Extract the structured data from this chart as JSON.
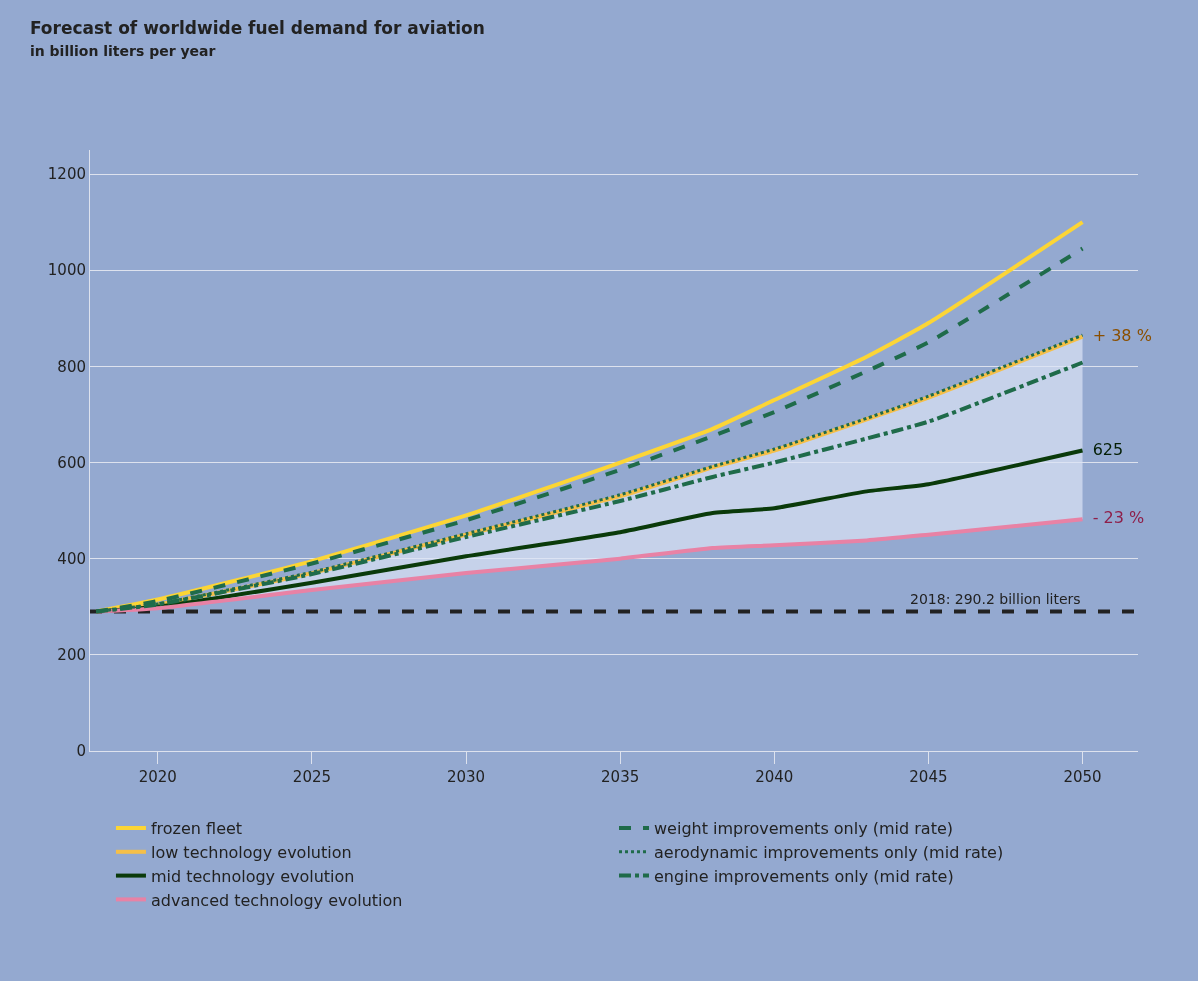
{
  "chart_data": {
    "type": "line",
    "title": "Forecast of worldwide fuel demand for aviation",
    "subtitle": "in billion liters per year",
    "x": [
      2018,
      2020,
      2025,
      2030,
      2035,
      2038,
      2040,
      2043,
      2045,
      2050
    ],
    "xlim": [
      2017.8,
      2051.8
    ],
    "xticks": [
      2020,
      2025,
      2030,
      2035,
      2040,
      2045,
      2050
    ],
    "ylim": [
      0,
      1250
    ],
    "yticks": [
      0,
      200,
      400,
      600,
      800,
      1000,
      1200
    ],
    "grid": "y",
    "legend": "bottom",
    "marker": "none",
    "series": [
      {
        "name": "frozen fleet",
        "color": "#fcd535",
        "line_style": "solid",
        "values": [
          290,
          315,
          395,
          490,
          600,
          670,
          730,
          820,
          890,
          1100
        ]
      },
      {
        "name": "low technology evolution",
        "color": "#f5bf48",
        "line_style": "solid",
        "values": [
          290,
          305,
          370,
          450,
          530,
          590,
          625,
          690,
          735,
          862
        ]
      },
      {
        "name": "mid technology evolution",
        "color": "#0a3a0a",
        "line_style": "solid",
        "values": [
          290,
          300,
          350,
          405,
          455,
          495,
          505,
          540,
          555,
          625
        ],
        "lower": [
          290,
          297,
          335,
          370,
          400,
          422,
          428,
          438,
          450,
          482
        ],
        "upper": [
          290,
          305,
          370,
          450,
          530,
          590,
          625,
          690,
          735,
          862
        ],
        "value_labels": [
          null,
          null,
          null,
          null,
          null,
          null,
          null,
          null,
          null,
          "625"
        ]
      },
      {
        "name": "advanced technology evolution",
        "color": "#e882a5",
        "line_style": "solid",
        "values": [
          290,
          297,
          335,
          370,
          400,
          422,
          428,
          438,
          450,
          482
        ]
      },
      {
        "name": "weight improvements only (mid rate)",
        "color": "#1f6b4a",
        "line_style": "dashed",
        "values": [
          290,
          312,
          390,
          480,
          585,
          655,
          705,
          790,
          850,
          1045
        ]
      },
      {
        "name": "aerodynamic improvements only (mid rate)",
        "color": "#1f6b4a",
        "line_style": "dotted",
        "values": [
          290,
          306,
          372,
          452,
          533,
          592,
          628,
          692,
          738,
          865
        ]
      },
      {
        "name": "engine improvements only (mid rate)",
        "color": "#1f6b4a",
        "line_style": "dashdot",
        "values": [
          290,
          305,
          368,
          445,
          520,
          570,
          600,
          650,
          685,
          808
        ]
      }
    ],
    "ref_lines": [
      {
        "axis": "y",
        "value": 290.2,
        "label": "2018: 290.2 billion liters",
        "color": "#222222",
        "line_style": "dashed"
      }
    ],
    "annotations": [
      {
        "text": "+ 38 %",
        "x": 2050,
        "y": 862
      },
      {
        "text": "- 23 %",
        "x": 2050,
        "y": 482
      }
    ]
  }
}
